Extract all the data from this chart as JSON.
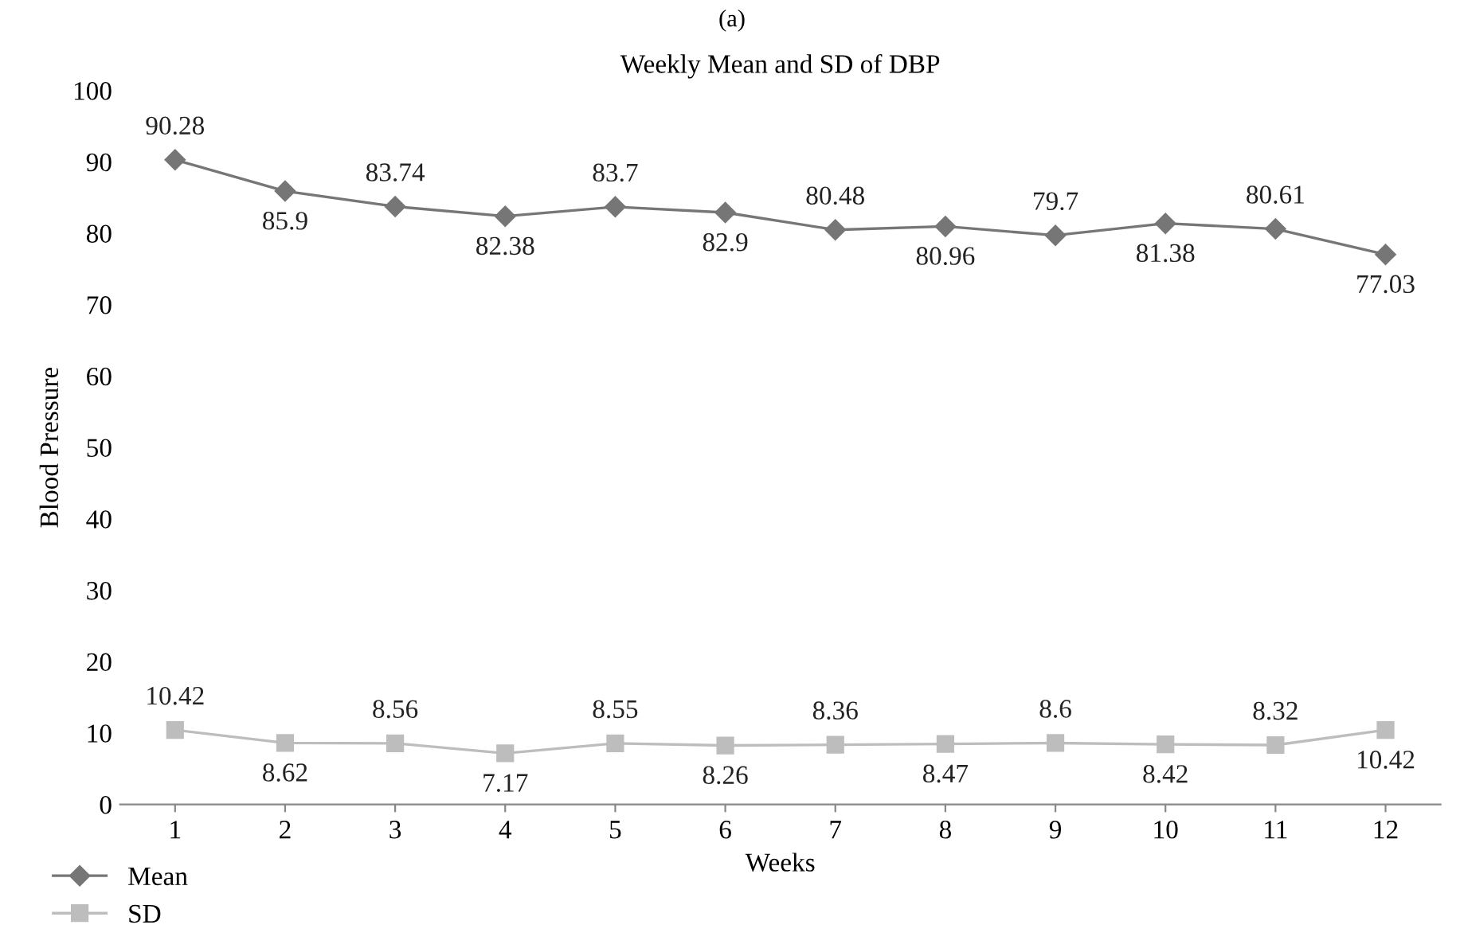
{
  "chart_data": {
    "type": "line",
    "title": "(a)",
    "subtitle": "Weekly Mean and SD of DBP",
    "xlabel": "Weeks",
    "ylabel": "Blood Pressure",
    "categories": [
      "1",
      "2",
      "3",
      "4",
      "5",
      "6",
      "7",
      "8",
      "9",
      "10",
      "11",
      "12"
    ],
    "series": [
      {
        "name": "Mean",
        "color": "#767676",
        "marker": "diamond",
        "values": [
          90.28,
          85.9,
          83.74,
          82.38,
          83.7,
          82.9,
          80.48,
          80.96,
          79.7,
          81.38,
          80.61,
          77.03
        ]
      },
      {
        "name": "SD",
        "color": "#bdbdbd",
        "marker": "square",
        "values": [
          10.42,
          8.62,
          8.56,
          7.17,
          8.55,
          8.26,
          8.36,
          8.47,
          8.6,
          8.42,
          8.32,
          10.42
        ]
      }
    ],
    "ylim": [
      0,
      100
    ],
    "yticks": [
      0,
      10,
      20,
      30,
      40,
      50,
      60,
      70,
      80,
      90,
      100
    ],
    "data_labels": true,
    "grid": false,
    "legend": "bottom left",
    "line_style": "solid"
  }
}
